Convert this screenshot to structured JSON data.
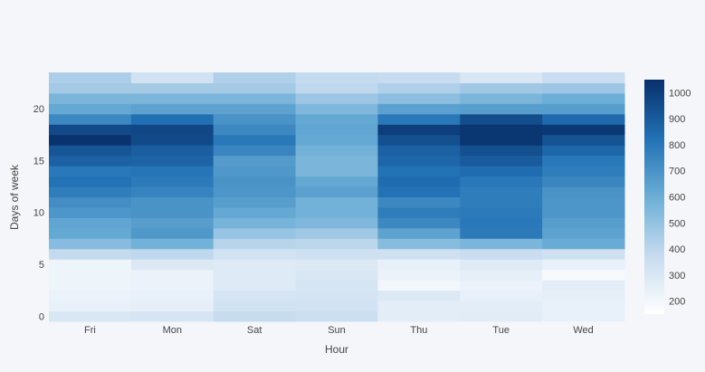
{
  "chart_data": {
    "type": "heatmap",
    "title": "",
    "xlabel": "Hour",
    "ylabel": "Days of week",
    "x_categories": [
      "Fri",
      "Mon",
      "Sat",
      "Sun",
      "Thu",
      "Tue",
      "Wed"
    ],
    "y_values": [
      0,
      1,
      2,
      3,
      4,
      5,
      6,
      7,
      8,
      9,
      10,
      11,
      12,
      13,
      14,
      15,
      16,
      17,
      18,
      19,
      20,
      21,
      22,
      23
    ],
    "y_ticks": [
      0,
      5,
      10,
      15,
      20
    ],
    "y_range": [
      -0.5,
      23.5
    ],
    "colorscale": [
      "#ffffff",
      "#08306b"
    ],
    "colorbar": {
      "min": 150,
      "max": 1050,
      "ticks": [
        200,
        300,
        400,
        500,
        600,
        700,
        800,
        900,
        1000
      ]
    },
    "grid": false,
    "z": [
      [
        300,
        310,
        370,
        350,
        260,
        270,
        240
      ],
      [
        240,
        250,
        330,
        330,
        260,
        260,
        240
      ],
      [
        230,
        240,
        310,
        320,
        290,
        240,
        250
      ],
      [
        220,
        230,
        280,
        310,
        200,
        230,
        260
      ],
      [
        220,
        230,
        280,
        300,
        230,
        250,
        180
      ],
      [
        220,
        290,
        280,
        290,
        240,
        280,
        240
      ],
      [
        380,
        390,
        330,
        340,
        340,
        360,
        340
      ],
      [
        530,
        580,
        410,
        400,
        530,
        560,
        610
      ],
      [
        620,
        680,
        490,
        470,
        640,
        790,
        640
      ],
      [
        630,
        660,
        570,
        550,
        740,
        800,
        660
      ],
      [
        690,
        700,
        620,
        580,
        780,
        790,
        690
      ],
      [
        720,
        700,
        660,
        580,
        740,
        780,
        690
      ],
      [
        780,
        760,
        690,
        650,
        820,
        780,
        700
      ],
      [
        820,
        790,
        700,
        620,
        840,
        800,
        750
      ],
      [
        800,
        810,
        680,
        560,
        820,
        840,
        780
      ],
      [
        880,
        870,
        670,
        560,
        860,
        900,
        800
      ],
      [
        920,
        890,
        750,
        580,
        880,
        940,
        860
      ],
      [
        1040,
        960,
        800,
        620,
        940,
        1030,
        930
      ],
      [
        960,
        970,
        740,
        630,
        1000,
        1030,
        1020
      ],
      [
        740,
        830,
        700,
        620,
        800,
        950,
        850
      ],
      [
        620,
        640,
        640,
        550,
        650,
        660,
        660
      ],
      [
        560,
        560,
        560,
        480,
        520,
        560,
        600
      ],
      [
        460,
        460,
        460,
        390,
        430,
        470,
        480
      ],
      [
        440,
        330,
        430,
        380,
        370,
        300,
        360
      ]
    ]
  }
}
